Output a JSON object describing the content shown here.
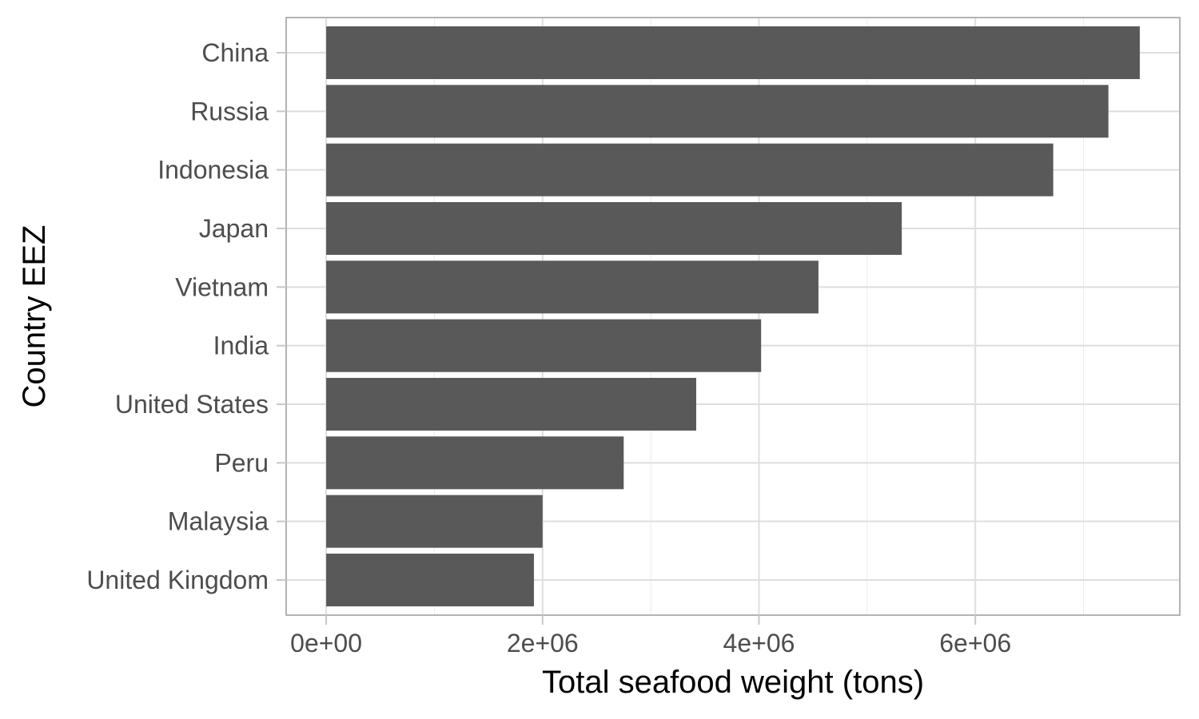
{
  "chart_data": {
    "type": "bar",
    "orientation": "horizontal",
    "title": "",
    "xlabel": "Total seafood weight (tons)",
    "ylabel": "Country EEZ",
    "categories": [
      "China",
      "Russia",
      "Indonesia",
      "Japan",
      "Vietnam",
      "India",
      "United States",
      "Peru",
      "Malaysia",
      "United Kingdom"
    ],
    "values": [
      7520000,
      7230000,
      6720000,
      5320000,
      4550000,
      4020000,
      3420000,
      2750000,
      2000000,
      1920000
    ],
    "xlim": [
      -370000,
      7890000
    ],
    "x_ticks": [
      0,
      2000000,
      4000000,
      6000000
    ],
    "x_tick_labels": [
      "0e+00",
      "2e+06",
      "4e+06",
      "6e+06"
    ],
    "bar_color": "#595959",
    "grid": true,
    "theme": "light"
  }
}
